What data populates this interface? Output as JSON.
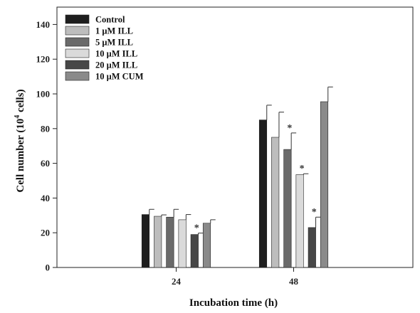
{
  "chart_data": {
    "type": "bar",
    "xlabel": "Incubation time (h)",
    "ylabel_main": "Cell number (10",
    "ylabel_sup": "4",
    "ylabel_tail": " cells)",
    "ylim": [
      0,
      150
    ],
    "yticks": [
      0,
      20,
      40,
      60,
      80,
      100,
      120,
      140
    ],
    "grid": false,
    "legend_position": "top-left",
    "categories": [
      "24",
      "48"
    ],
    "series": [
      {
        "name": "Control",
        "color": "#1e1e1e",
        "values": [
          30.5,
          85
        ],
        "errors": [
          3,
          8.5
        ],
        "significant": [
          false,
          false
        ]
      },
      {
        "name": "1 μM ILL",
        "color": "#bdbdbd",
        "values": [
          29.5,
          75
        ],
        "errors": [
          0.8,
          14.5
        ],
        "significant": [
          false,
          false
        ]
      },
      {
        "name": "5 μM ILL",
        "color": "#6a6a6a",
        "values": [
          29,
          68
        ],
        "errors": [
          4.5,
          9.5
        ],
        "significant": [
          false,
          true
        ]
      },
      {
        "name": "10 μM ILL",
        "color": "#dadada",
        "values": [
          27.5,
          53.5
        ],
        "errors": [
          3,
          0.5
        ],
        "significant": [
          false,
          true
        ]
      },
      {
        "name": "20 μM ILL",
        "color": "#474747",
        "values": [
          19,
          23
        ],
        "errors": [
          0.8,
          6
        ],
        "significant": [
          true,
          true
        ]
      },
      {
        "name": "10 μM CUM",
        "color": "#8a8a8a",
        "values": [
          25.5,
          95.5
        ],
        "errors": [
          2,
          8.5
        ],
        "significant": [
          false,
          false
        ]
      }
    ],
    "significance_mark": "*"
  }
}
